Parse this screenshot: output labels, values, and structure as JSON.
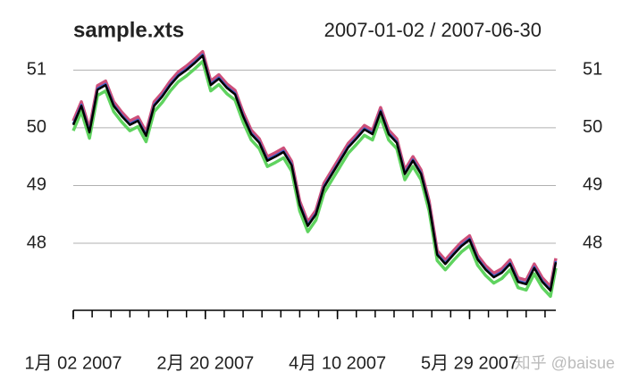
{
  "chart_data": {
    "type": "line",
    "title": "sample.xts",
    "subtitle": "2007-01-02 / 2007-06-30",
    "x": [
      "2007-01-02",
      "2007-01-05",
      "2007-01-08",
      "2007-01-11",
      "2007-01-14",
      "2007-01-17",
      "2007-01-20",
      "2007-01-23",
      "2007-01-26",
      "2007-01-29",
      "2007-02-01",
      "2007-02-04",
      "2007-02-07",
      "2007-02-10",
      "2007-02-13",
      "2007-02-16",
      "2007-02-19",
      "2007-02-22",
      "2007-02-25",
      "2007-02-28",
      "2007-03-03",
      "2007-03-06",
      "2007-03-09",
      "2007-03-12",
      "2007-03-15",
      "2007-03-18",
      "2007-03-21",
      "2007-03-24",
      "2007-03-27",
      "2007-03-30",
      "2007-04-02",
      "2007-04-05",
      "2007-04-08",
      "2007-04-11",
      "2007-04-14",
      "2007-04-17",
      "2007-04-20",
      "2007-04-23",
      "2007-04-26",
      "2007-04-29",
      "2007-05-02",
      "2007-05-05",
      "2007-05-08",
      "2007-05-11",
      "2007-05-14",
      "2007-05-17",
      "2007-05-20",
      "2007-05-23",
      "2007-05-26",
      "2007-05-29",
      "2007-06-01",
      "2007-06-04",
      "2007-06-07",
      "2007-06-10",
      "2007-06-13",
      "2007-06-16",
      "2007-06-19",
      "2007-06-22",
      "2007-06-25",
      "2007-06-28",
      "2007-06-30"
    ],
    "series": [
      {
        "color": "#5fd35f",
        "values": [
          49.95,
          50.28,
          49.82,
          50.56,
          50.64,
          50.28,
          50.1,
          49.95,
          50.02,
          49.76,
          50.28,
          50.44,
          50.64,
          50.8,
          50.9,
          51.02,
          51.15,
          50.64,
          50.75,
          50.59,
          50.48,
          50.1,
          49.79,
          49.64,
          49.33,
          49.4,
          49.48,
          49.25,
          48.56,
          48.2,
          48.4,
          48.87,
          49.1,
          49.33,
          49.56,
          49.71,
          49.87,
          49.79,
          50.18,
          49.79,
          49.64,
          49.1,
          49.33,
          49.1,
          48.56,
          47.7,
          47.54,
          47.7,
          47.85,
          47.96,
          47.62,
          47.44,
          47.31,
          47.39,
          47.54,
          47.23,
          47.19,
          47.47,
          47.23,
          47.08,
          47.57
        ]
      },
      {
        "color": "#cd4f7a",
        "values": [
          50.12,
          50.45,
          49.99,
          50.73,
          50.81,
          50.45,
          50.27,
          50.12,
          50.19,
          49.93,
          50.45,
          50.61,
          50.81,
          50.97,
          51.07,
          51.19,
          51.32,
          50.81,
          50.92,
          50.76,
          50.65,
          50.27,
          49.96,
          49.81,
          49.5,
          49.57,
          49.65,
          49.42,
          48.73,
          48.37,
          48.57,
          49.04,
          49.27,
          49.5,
          49.73,
          49.88,
          50.04,
          49.96,
          50.35,
          49.96,
          49.81,
          49.27,
          49.5,
          49.27,
          48.73,
          47.87,
          47.71,
          47.87,
          48.02,
          48.13,
          47.79,
          47.61,
          47.48,
          47.56,
          47.71,
          47.4,
          47.36,
          47.64,
          47.4,
          47.25,
          47.74
        ]
      },
      {
        "color": "#3a5fcd",
        "values": [
          50.07,
          50.4,
          49.94,
          50.68,
          50.76,
          50.4,
          50.22,
          50.07,
          50.14,
          49.88,
          50.4,
          50.56,
          50.76,
          50.92,
          51.02,
          51.14,
          51.27,
          50.76,
          50.87,
          50.71,
          50.6,
          50.22,
          49.91,
          49.76,
          49.45,
          49.52,
          49.6,
          49.37,
          48.68,
          48.32,
          48.52,
          48.99,
          49.22,
          49.45,
          49.68,
          49.83,
          49.99,
          49.91,
          50.3,
          49.91,
          49.76,
          49.22,
          49.45,
          49.22,
          48.68,
          47.82,
          47.66,
          47.82,
          47.97,
          48.08,
          47.74,
          47.56,
          47.43,
          47.51,
          47.66,
          47.35,
          47.31,
          47.59,
          47.35,
          47.2,
          47.69
        ]
      },
      {
        "color": "#000000",
        "values": [
          50.05,
          50.38,
          49.92,
          50.66,
          50.74,
          50.38,
          50.2,
          50.05,
          50.12,
          49.86,
          50.38,
          50.54,
          50.74,
          50.9,
          51.0,
          51.12,
          51.25,
          50.74,
          50.85,
          50.69,
          50.58,
          50.2,
          49.89,
          49.74,
          49.43,
          49.5,
          49.58,
          49.35,
          48.66,
          48.3,
          48.5,
          48.97,
          49.2,
          49.43,
          49.66,
          49.81,
          49.97,
          49.89,
          50.28,
          49.89,
          49.74,
          49.2,
          49.43,
          49.2,
          48.66,
          47.8,
          47.64,
          47.8,
          47.95,
          48.06,
          47.72,
          47.54,
          47.41,
          47.49,
          47.64,
          47.33,
          47.29,
          47.57,
          47.33,
          47.18,
          47.67
        ]
      }
    ],
    "xlim": [
      "2007-01-02",
      "2007-06-30"
    ],
    "xticks": [
      {
        "value": "2007-01-02",
        "label": "1月 02 2007"
      },
      {
        "value": "2007-02-20",
        "label": "2月 20 2007"
      },
      {
        "value": "2007-04-10",
        "label": "4月 10 2007"
      },
      {
        "value": "2007-05-29",
        "label": "5月 29 2007"
      }
    ],
    "ylim": [
      46.9,
      51.3
    ],
    "yticks": [
      48,
      49,
      50,
      51
    ],
    "grid": true
  },
  "watermark": "知乎 @baisue"
}
